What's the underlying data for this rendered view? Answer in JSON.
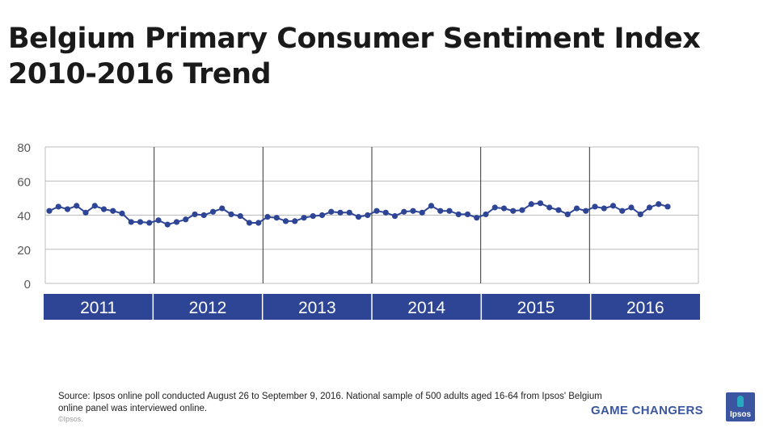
{
  "title_line1": "Belgium Primary Consumer Sentiment Index",
  "title_line2": "2010-2016 Trend",
  "colors": {
    "line": "#2e4596",
    "year_band": "#2e4596",
    "grid": "#bcbcbc",
    "tick": "#595959"
  },
  "chart_data": {
    "type": "line",
    "title": "Belgium Primary Consumer Sentiment Index 2010-2016 Trend",
    "xlabel": "",
    "ylabel": "",
    "ylim": [
      0,
      80
    ],
    "y_ticks": [
      "0",
      "20",
      "40",
      "60",
      "80"
    ],
    "grid": true,
    "years": [
      "2011",
      "2012",
      "2013",
      "2014",
      "2015",
      "2016"
    ],
    "series": [
      {
        "name": "Primary Consumer Sentiment Index",
        "values": [
          42.5,
          45,
          43.5,
          45.5,
          41.5,
          45.5,
          43.5,
          42.5,
          41,
          36,
          36,
          35.5,
          37,
          34.5,
          36,
          37.5,
          40.5,
          40,
          42,
          44,
          40.5,
          39.5,
          35.5,
          35.5,
          39,
          38.5,
          36.5,
          36.5,
          38.5,
          39.5,
          40,
          42,
          41.5,
          41.5,
          39,
          40,
          42.5,
          41.5,
          39.5,
          42,
          42.5,
          41.5,
          45.5,
          42.5,
          42.5,
          40.5,
          40.5,
          38.5,
          40.5,
          44.5,
          44,
          42.5,
          43,
          46.5,
          47,
          44.5,
          43,
          40.5,
          44,
          42.5,
          45,
          44,
          45.5,
          42.5,
          44.5,
          40.5,
          44.5,
          46.5,
          45
        ]
      }
    ]
  },
  "footer": {
    "source": "Source: Ipsos online poll conducted August 26 to September 9, 2016. National sample of 500 adults aged 16-64 from Ipsos' Belgium online panel was interviewed online.",
    "copyright": "©Ipsos.",
    "tagline": "GAME CHANGERS",
    "logo_text": "Ipsos"
  }
}
